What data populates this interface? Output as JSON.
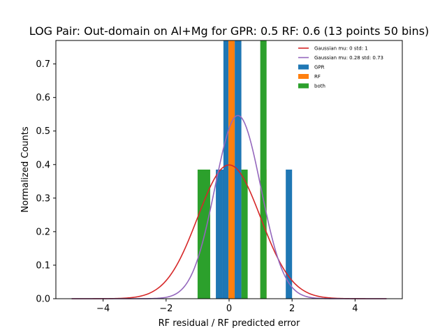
{
  "chart_data": {
    "type": "bar",
    "title": "LOG Pair: Out-domain on Al+Mg for GPR: 0.5 RF: 0.6 (13 points 50 bins)",
    "xlabel": "RF residual / RF predicted error",
    "ylabel": "Normalized Counts",
    "xlim": [
      -5.5,
      5.5
    ],
    "ylim": [
      0,
      0.77
    ],
    "xticks": [
      -4,
      -2,
      0,
      2,
      4
    ],
    "xtick_labels": [
      "−4",
      "−2",
      "0",
      "2",
      "4"
    ],
    "yticks": [
      0.0,
      0.1,
      0.2,
      0.3,
      0.4,
      0.5,
      0.6,
      0.7
    ],
    "ytick_labels": [
      "0.0",
      "0.1",
      "0.2",
      "0.3",
      "0.4",
      "0.5",
      "0.6",
      "0.7"
    ],
    "grid": false,
    "legend_position": "top-right",
    "colors": {
      "GPR": "#1f77b4",
      "RF": "#ff7f0e",
      "both": "#2ca02c",
      "gauss_standard": "#d62728",
      "gauss_fit": "#9467bd"
    },
    "bars": [
      {
        "series": "both",
        "x0": -1.0,
        "x1": -0.6,
        "height": 0.385
      },
      {
        "series": "GPR",
        "x0": -0.42,
        "x1": -0.21,
        "height": 0.385
      },
      {
        "series": "GPR",
        "x0": -0.21,
        "x1": -0.02,
        "height": 0.385
      },
      {
        "series": "GPR",
        "x0": -0.18,
        "x1": -0.02,
        "height": 0.77
      },
      {
        "series": "RF",
        "x0": -0.02,
        "x1": 0.18,
        "height": 0.77
      },
      {
        "series": "GPR",
        "x0": 0.18,
        "x1": 0.39,
        "height": 0.77
      },
      {
        "series": "GPR",
        "x0": 0.18,
        "x1": 0.39,
        "height": 0.385
      },
      {
        "series": "both",
        "x0": 0.39,
        "x1": 0.59,
        "height": 0.385
      },
      {
        "series": "RF",
        "x0": 0.99,
        "x1": 1.19,
        "height": 0.385
      },
      {
        "series": "both",
        "x0": 0.99,
        "x1": 1.19,
        "height": 0.77
      },
      {
        "series": "GPR",
        "x0": 1.8,
        "x1": 2.0,
        "height": 0.385
      }
    ],
    "series": [
      {
        "name": "Gaussian mu: 0 std: 1",
        "kind": "line",
        "mu": 0,
        "std": 1,
        "x_range": [
          -5,
          5
        ]
      },
      {
        "name": "Gaussian mu: 0.28 std: 0.73",
        "kind": "line",
        "mu": 0.28,
        "std": 0.73,
        "x_range": [
          -5,
          5
        ]
      },
      {
        "name": "GPR",
        "kind": "bar"
      },
      {
        "name": "RF",
        "kind": "bar"
      },
      {
        "name": "both",
        "kind": "bar"
      }
    ]
  }
}
